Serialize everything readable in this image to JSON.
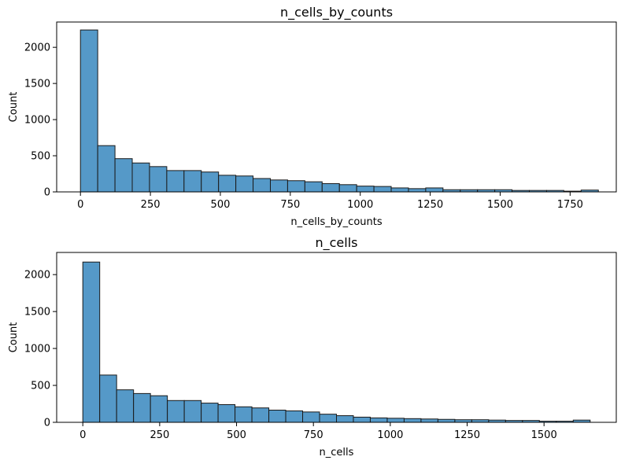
{
  "chart_data": [
    {
      "type": "bar",
      "title": "n_cells_by_counts",
      "xlabel": "n_cells_by_counts",
      "ylabel": "Count",
      "xlim": [
        -85,
        1915
      ],
      "ylim": [
        0,
        2350
      ],
      "xticks": [
        0,
        250,
        500,
        750,
        1000,
        1250,
        1500,
        1750
      ],
      "yticks": [
        0,
        500,
        1000,
        1500,
        2000
      ],
      "bin_width": 61.7,
      "bin_starts": [
        0,
        61.7,
        123.4,
        185.1,
        246.8,
        308.5,
        370.2,
        431.9,
        493.6,
        555.3,
        617,
        678.7,
        740.4,
        802.1,
        863.8,
        925.5,
        987.2,
        1048.9,
        1110.6,
        1172.3,
        1234,
        1295.7,
        1357.4,
        1419.1,
        1480.8,
        1542.5,
        1604.2,
        1665.9,
        1727.6,
        1789.3
      ],
      "values": [
        2240,
        640,
        460,
        400,
        350,
        295,
        295,
        275,
        230,
        220,
        185,
        165,
        155,
        140,
        115,
        100,
        80,
        75,
        55,
        45,
        55,
        30,
        30,
        30,
        30,
        20,
        20,
        20,
        10,
        25
      ],
      "grid": false,
      "legend": "none"
    },
    {
      "type": "bar",
      "title": "n_cells",
      "xlabel": "n_cells",
      "ylabel": "Count",
      "xlim": [
        -85,
        1735
      ],
      "ylim": [
        0,
        2300
      ],
      "xticks": [
        0,
        250,
        500,
        750,
        1000,
        1250,
        1500
      ],
      "yticks": [
        0,
        500,
        1000,
        1500,
        2000
      ],
      "bin_width": 55,
      "bin_starts": [
        0,
        55,
        110,
        165,
        220,
        275,
        330,
        385,
        440,
        495,
        550,
        605,
        660,
        715,
        770,
        825,
        880,
        935,
        990,
        1045,
        1100,
        1155,
        1210,
        1265,
        1320,
        1375,
        1430,
        1485,
        1540,
        1595
      ],
      "values": [
        2170,
        640,
        440,
        390,
        360,
        295,
        295,
        260,
        240,
        210,
        195,
        165,
        155,
        140,
        110,
        90,
        70,
        60,
        55,
        50,
        45,
        40,
        35,
        35,
        30,
        25,
        25,
        15,
        15,
        30
      ],
      "grid": false,
      "legend": "none"
    }
  ]
}
